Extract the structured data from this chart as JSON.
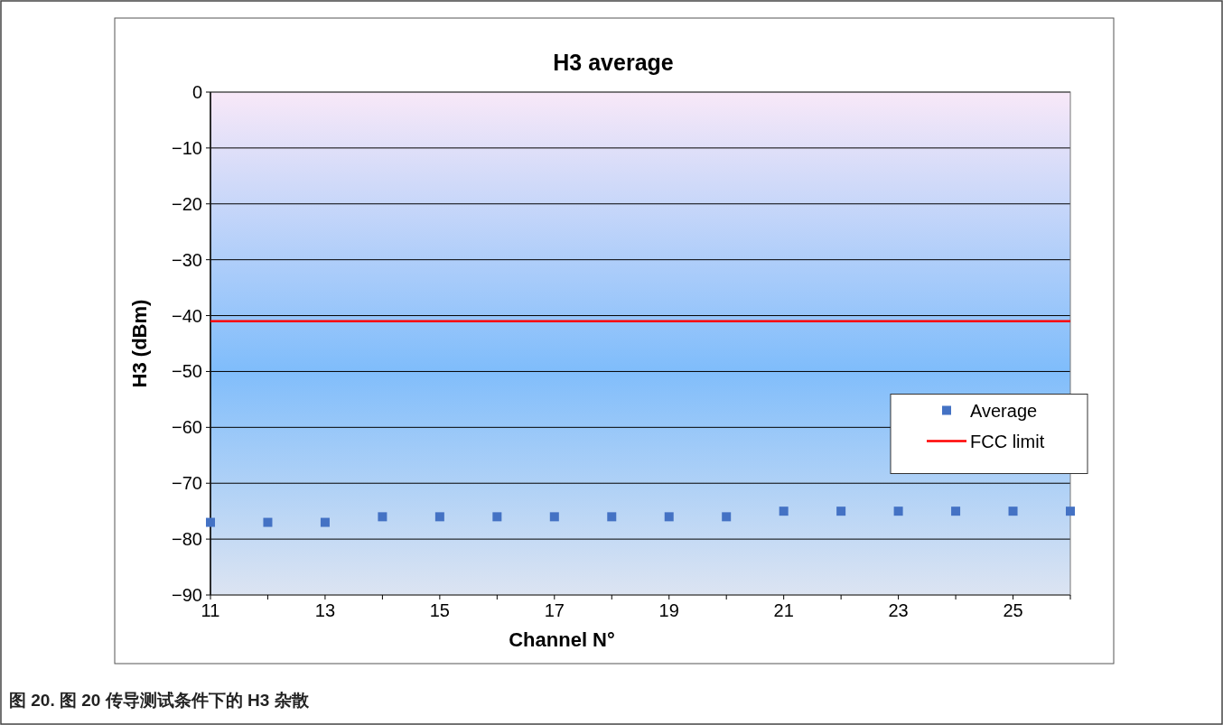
{
  "chart_data": {
    "type": "scatter",
    "title": "H3 average",
    "xlabel": "Channel N°",
    "ylabel": "H3 (dBm)",
    "categories": [
      "11",
      null,
      "13",
      null,
      "15",
      null,
      "17",
      null,
      "19",
      null,
      "21",
      null,
      "23",
      null,
      "25",
      null
    ],
    "series": [
      {
        "name": "Average",
        "color": "#4472c4",
        "values": [
          -77,
          -77,
          -77,
          -76,
          -76,
          -76,
          -76,
          -76,
          -76,
          -76,
          -75,
          -75,
          -75,
          -75,
          -75,
          -75
        ]
      }
    ],
    "ref_lines": [
      {
        "axis": "y",
        "value": -41,
        "label": "FCC limit",
        "color": "#ff0000",
        "line_style": "solid"
      }
    ],
    "ylim": [
      -90,
      0
    ],
    "yticks": [
      0,
      -10,
      -20,
      -30,
      -40,
      -50,
      -60,
      -70,
      -80,
      -90
    ],
    "grid": "y",
    "legend": "right",
    "marker": "square",
    "annotations": [
      "图 20. 图 20 传导测试条件下的 H3 杂散"
    ]
  }
}
